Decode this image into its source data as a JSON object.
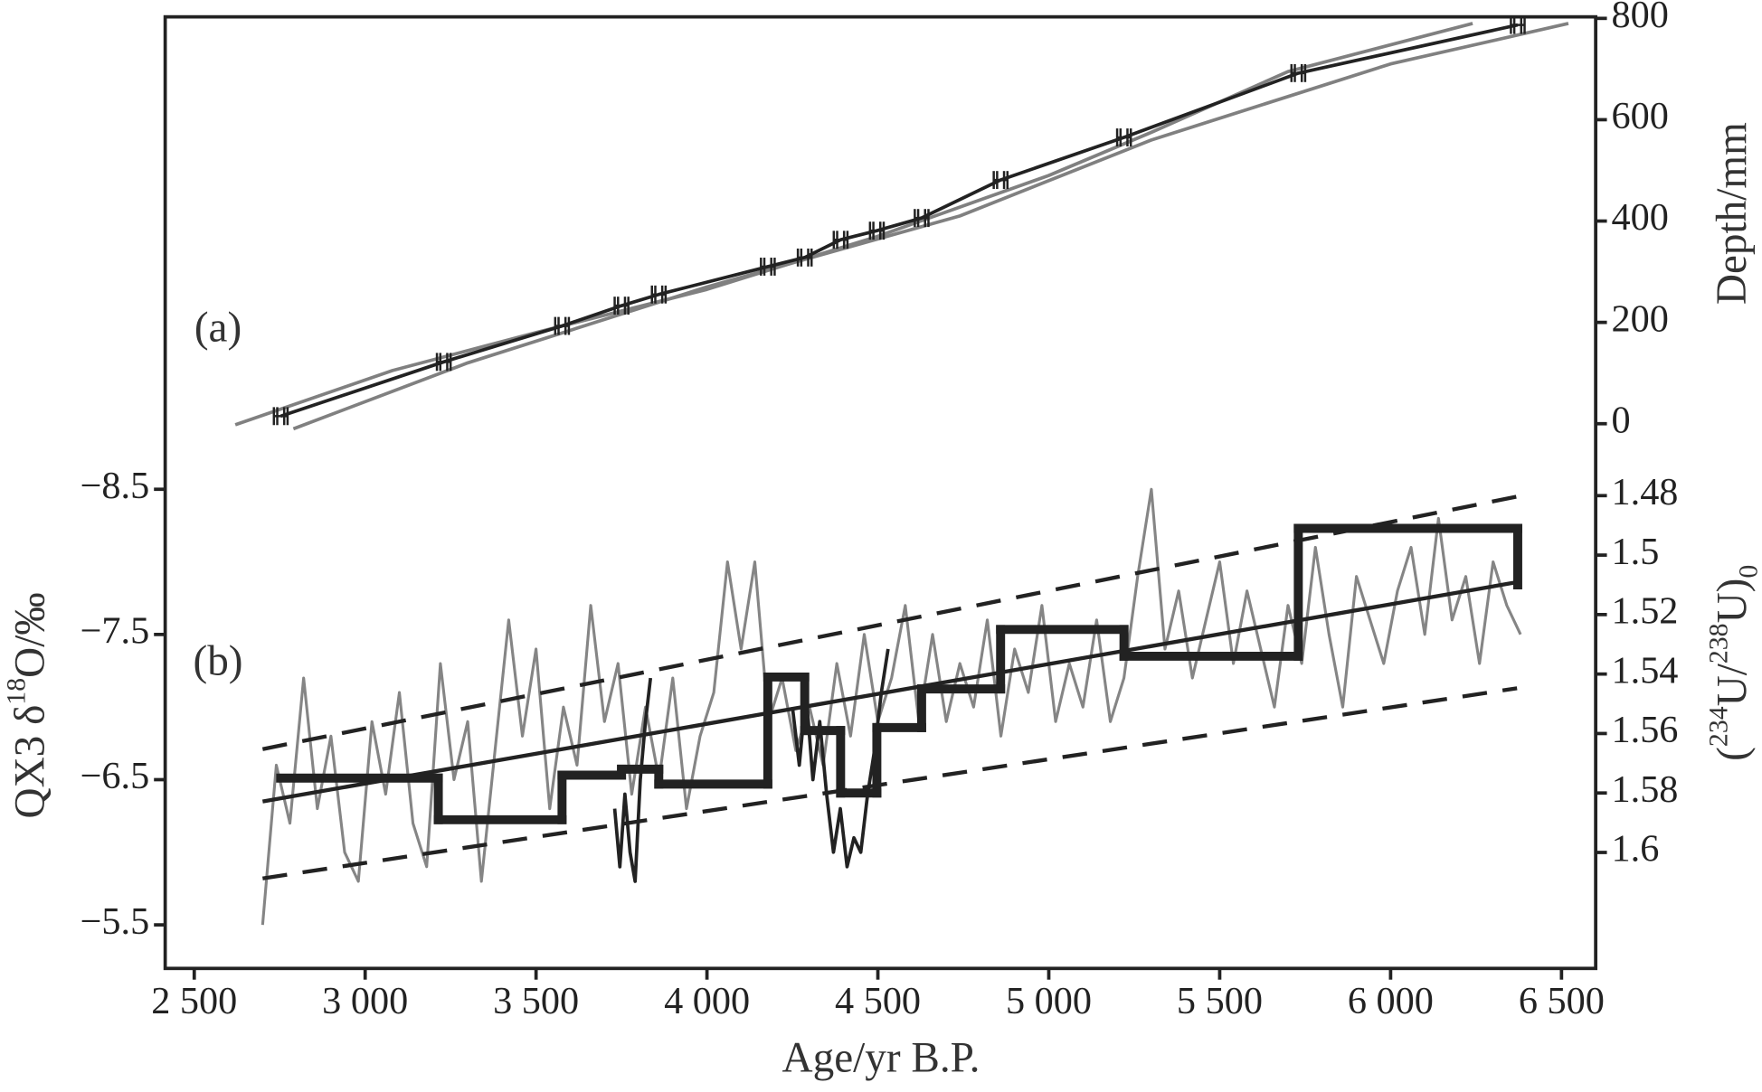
{
  "chart_data": [
    {
      "type": "line",
      "panel_label": "(a)",
      "ylabel": "Depth/mm",
      "y_axis_position": "right",
      "xlim": [
        2415,
        6600
      ],
      "ylim": [
        -95,
        803
      ],
      "yticks": [
        0,
        200,
        400,
        600,
        800
      ],
      "series": [
        {
          "color": "#808080",
          "linewidth": 3,
          "x": [
            2620,
            3080,
            3500,
            4000,
            4500,
            5000,
            5300,
            5700,
            6240
          ],
          "values": [
            -2,
            105,
            180,
            265,
            370,
            490,
            575,
            695,
            790
          ]
        },
        {
          "color": "#808080",
          "linewidth": 3,
          "x": [
            2790,
            3300,
            4000,
            4740,
            5300,
            6000,
            6520
          ],
          "values": [
            -10,
            120,
            270,
            410,
            560,
            710,
            790
          ]
        },
        {
          "color": "#222222",
          "linewidth": 3,
          "marker": "errorbar",
          "x": [
            2753,
            3230,
            3576,
            3750,
            3859,
            4178,
            4286,
            4391,
            4497,
            4628,
            4859,
            5220,
            5730,
            6372
          ],
          "xerr": [
            20,
            20,
            20,
            20,
            20,
            20,
            20,
            20,
            20,
            20,
            20,
            20,
            20,
            20
          ],
          "values": [
            15,
            122,
            193,
            233,
            255,
            310,
            328,
            363,
            381,
            406,
            481,
            565,
            692,
            787
          ]
        }
      ]
    },
    {
      "type": "line",
      "panel_label": "(b)",
      "xlabel": "Age/yr B.P.",
      "ylabel": {
        "parts": [
          "QX3 δ",
          "18",
          "O/‰"
        ]
      },
      "y2label": {
        "parts": [
          "(",
          "234",
          "U/",
          "238",
          "U)",
          "0"
        ]
      },
      "xlim": [
        2415,
        6600
      ],
      "xticks": [
        {
          "value": 2500,
          "label": "2 500"
        },
        {
          "value": 3000,
          "label": "3 000"
        },
        {
          "value": 3500,
          "label": "3 500"
        },
        {
          "value": 4000,
          "label": "4 000"
        },
        {
          "value": 4500,
          "label": "4 500"
        },
        {
          "value": 5000,
          "label": "5 000"
        },
        {
          "value": 5500,
          "label": "5 500"
        },
        {
          "value": 6000,
          "label": "6 000"
        },
        {
          "value": 6500,
          "label": "6 500"
        }
      ],
      "ylim": [
        -8.62,
        -5.2
      ],
      "y_inverted": true,
      "yticks": [
        {
          "value": -8.5,
          "label": "−8.5"
        },
        {
          "value": -7.5,
          "label": "−7.5"
        },
        {
          "value": -6.5,
          "label": "−6.5"
        },
        {
          "value": -5.5,
          "label": "−5.5"
        }
      ],
      "y2lim": [
        1.472,
        1.639
      ],
      "y2_inverted": true,
      "y2ticks": [
        1.48,
        1.5,
        1.52,
        1.54,
        1.56,
        1.58,
        1.6
      ],
      "series": [
        {
          "color": "#858585",
          "linewidth": 2.5,
          "x": [
            2700,
            2740,
            2780,
            2820,
            2860,
            2900,
            2940,
            2980,
            3020,
            3060,
            3100,
            3140,
            3180,
            3220,
            3260,
            3300,
            3340,
            3380,
            3420,
            3460,
            3500,
            3540,
            3580,
            3620,
            3660,
            3700,
            3740,
            3780,
            3820,
            3860,
            3900,
            3940,
            3980,
            4020,
            4060,
            4100,
            4140,
            4180,
            4220,
            4260,
            4300,
            4340,
            4380,
            4420,
            4460,
            4500,
            4540,
            4580,
            4620,
            4660,
            4700,
            4740,
            4780,
            4820,
            4860,
            4900,
            4940,
            4980,
            5020,
            5060,
            5100,
            5140,
            5180,
            5220,
            5260,
            5300,
            5340,
            5380,
            5420,
            5460,
            5500,
            5540,
            5580,
            5620,
            5660,
            5700,
            5740,
            5780,
            5820,
            5860,
            5900,
            5940,
            5980,
            6020,
            6060,
            6100,
            6140,
            6180,
            6220,
            6260,
            6300,
            6340,
            6380
          ],
          "values": [
            -5.5,
            -6.6,
            -6.2,
            -7.2,
            -6.3,
            -6.8,
            -6.0,
            -5.8,
            -6.9,
            -6.4,
            -7.1,
            -6.2,
            -5.9,
            -7.3,
            -6.5,
            -6.9,
            -5.8,
            -6.7,
            -7.6,
            -6.8,
            -7.4,
            -6.3,
            -7.0,
            -6.6,
            -7.7,
            -6.9,
            -7.3,
            -6.4,
            -7.0,
            -6.5,
            -7.2,
            -6.3,
            -6.8,
            -7.1,
            -8.0,
            -7.4,
            -8.0,
            -6.9,
            -7.2,
            -6.7,
            -7.0,
            -6.6,
            -7.3,
            -6.8,
            -7.5,
            -6.9,
            -7.2,
            -7.7,
            -6.9,
            -7.5,
            -6.9,
            -7.3,
            -7.0,
            -7.6,
            -6.8,
            -7.4,
            -7.1,
            -7.7,
            -6.9,
            -7.3,
            -7.0,
            -7.6,
            -6.9,
            -7.2,
            -7.9,
            -8.5,
            -7.4,
            -7.8,
            -7.2,
            -7.6,
            -8.0,
            -7.3,
            -7.8,
            -7.4,
            -7.0,
            -7.7,
            -7.3,
            -8.1,
            -7.5,
            -7.0,
            -7.9,
            -7.6,
            -7.3,
            -7.8,
            -8.1,
            -7.5,
            -8.3,
            -7.6,
            -7.9,
            -7.3,
            -8.0,
            -7.7,
            -7.5
          ]
        },
        {
          "color": "#222222",
          "linewidth": 3,
          "x": [
            3730,
            3745,
            3760,
            3775,
            3790,
            3805,
            3820,
            3835,
            3900,
            4250,
            4270,
            4290,
            4310,
            4330,
            4350,
            4370,
            4390,
            4410,
            4430,
            4450,
            4470,
            4490,
            4510,
            4530
          ],
          "values": [
            -6.3,
            -5.9,
            -6.4,
            -6.0,
            -5.8,
            -6.5,
            -6.9,
            -7.2,
            null,
            -7.0,
            -6.6,
            -7.1,
            -6.5,
            -6.9,
            -6.4,
            -6.0,
            -6.3,
            -5.9,
            -6.1,
            -6.0,
            -6.4,
            -6.7,
            -7.1,
            -7.4
          ]
        },
        {
          "color": "#222222",
          "linewidth": 3.5,
          "x": [
            2700,
            6370
          ],
          "values": [
            -6.35,
            -7.86
          ]
        },
        {
          "color": "#222222",
          "linewidth": 3.5,
          "dash": true,
          "x": [
            2700,
            6370
          ],
          "values": [
            -6.71,
            -8.45
          ]
        },
        {
          "color": "#222222",
          "linewidth": 3.5,
          "dash": true,
          "x": [
            2700,
            6370
          ],
          "values": [
            -5.82,
            -7.13
          ]
        },
        {
          "color": "#222222",
          "linewidth": 8,
          "axis": "y2",
          "drawstyle": "steps-post",
          "x": [
            2753,
            3214,
            3576,
            3750,
            3859,
            4178,
            4286,
            4391,
            4497,
            4628,
            4859,
            5220,
            5730,
            6372
          ],
          "values": [
            1.575,
            1.589,
            1.574,
            1.572,
            1.577,
            1.541,
            1.559,
            1.58,
            1.558,
            1.545,
            1.525,
            1.534,
            1.491,
            1.51
          ]
        }
      ]
    }
  ]
}
